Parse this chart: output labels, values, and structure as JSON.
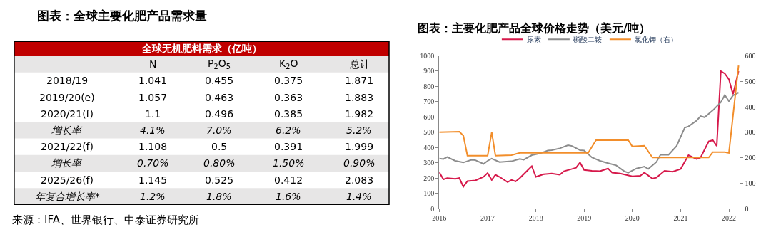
{
  "chart_data": [
    {
      "type": "other",
      "title": "图表：全球主要化肥产品需求量",
      "subtitle": "全球无机肥料需求（亿吨）",
      "categories": [
        "N",
        "P$_{2}$O$_{5}$",
        "K$_{2}$O",
        "总计"
      ],
      "y_categories": [
        "2018/19",
        "2019/20(e)",
        "2020/21(f)",
        "增长率",
        "2021/22(f)",
        "增长率",
        "2025/26(f)",
        "年复合增长率*"
      ],
      "cell_labels": [
        [
          "1.041",
          "0.455",
          "0.375",
          "1.871"
        ],
        [
          "1.057",
          "0.463",
          "0.363",
          "1.883"
        ],
        [
          "1.1",
          "0.496",
          "0.385",
          "1.982"
        ],
        [
          "4.1%",
          "7.0%",
          "6.2%",
          "5.2%"
        ],
        [
          "1.108",
          "0.5",
          "0.391",
          "1.999"
        ],
        [
          "0.70%",
          "0.80%",
          "1.50%",
          "0.90%"
        ],
        [
          "1.145",
          "0.525",
          "0.412",
          "2.083"
        ],
        [
          "1.2%",
          "1.8%",
          "1.6%",
          "1.4%"
        ]
      ],
      "color": "#c00000",
      "annotations": [
        "来源：IFA、世界银行、中泰证券研究所"
      ]
    },
    {
      "type": "line",
      "title": "图表：主要化肥产品全球价格走势（美元/吨）",
      "xlim": [
        "2016-01-01",
        "2022-03-25"
      ],
      "xticks": [
        "2016",
        "2017",
        "2018",
        "2019",
        "2020",
        "2021",
        "2022"
      ],
      "ylim": [
        0,
        1000
      ],
      "yticks": [
        0,
        100,
        200,
        300,
        400,
        500,
        600,
        700,
        800,
        900,
        1000
      ],
      "y2lim": [
        0,
        600
      ],
      "y2ticks": [
        0,
        100,
        200,
        300,
        400,
        500,
        600
      ],
      "legend": "top",
      "marker": "none",
      "line_style": "solid",
      "series": [
        {
          "name": "尿素",
          "color": "#d6184a",
          "x": [
            "2016-01",
            "2016-02",
            "2016-03",
            "2016-05",
            "2016-06",
            "2016-07",
            "2016-08",
            "2016-10",
            "2016-12",
            "2017-01",
            "2017-02",
            "2017-03",
            "2017-04",
            "2017-06",
            "2017-07",
            "2017-08",
            "2017-09",
            "2017-11",
            "2017-12",
            "2018-01",
            "2018-03",
            "2018-05",
            "2018-07",
            "2018-08",
            "2018-10",
            "2018-11",
            "2018-12",
            "2019-01",
            "2019-03",
            "2019-05",
            "2019-07",
            "2019-08",
            "2019-10",
            "2020-01",
            "2020-03",
            "2020-04",
            "2020-06",
            "2020-07",
            "2020-09",
            "2020-11",
            "2021-01",
            "2021-03",
            "2021-05",
            "2021-06",
            "2021-08",
            "2021-09",
            "2021-10",
            "2021-11",
            "2021-12",
            "2022-01",
            "2022-02",
            "2022-03-15"
          ],
          "values": [
            238,
            192,
            200,
            195,
            200,
            143,
            180,
            185,
            208,
            233,
            188,
            222,
            208,
            174,
            188,
            178,
            200,
            252,
            278,
            208,
            225,
            230,
            222,
            245,
            260,
            268,
            302,
            253,
            248,
            245,
            263,
            236,
            230,
            212,
            215,
            236,
            197,
            203,
            248,
            242,
            260,
            350,
            325,
            335,
            440,
            448,
            410,
            900,
            884,
            847,
            749,
            900
          ]
        },
        {
          "name": "磷酸二铵",
          "color": "#8c8c8c",
          "x": [
            "2016-01",
            "2016-02",
            "2016-03",
            "2016-05",
            "2016-07",
            "2016-09",
            "2016-10",
            "2016-12",
            "2017-01",
            "2017-02",
            "2017-04",
            "2017-07",
            "2017-09",
            "2017-10",
            "2017-12",
            "2018-02",
            "2018-04",
            "2018-05",
            "2018-07",
            "2018-09",
            "2018-10",
            "2018-12",
            "2019-01",
            "2019-03",
            "2019-05",
            "2019-07",
            "2019-09",
            "2019-11",
            "2019-12",
            "2020-02",
            "2020-04",
            "2020-05",
            "2020-07",
            "2020-08",
            "2020-10",
            "2020-12",
            "2021-02",
            "2021-03",
            "2021-05",
            "2021-06",
            "2021-07",
            "2021-09",
            "2021-11",
            "2021-12",
            "2022-01",
            "2022-02",
            "2022-03-15"
          ],
          "values": [
            328,
            325,
            338,
            313,
            302,
            320,
            317,
            293,
            313,
            328,
            305,
            310,
            325,
            320,
            350,
            362,
            380,
            383,
            395,
            415,
            410,
            383,
            380,
            335,
            313,
            298,
            283,
            245,
            235,
            263,
            275,
            260,
            305,
            353,
            353,
            410,
            530,
            538,
            576,
            606,
            598,
            643,
            696,
            744,
            703,
            741,
            760
          ]
        },
        {
          "name": "氯化钾（右）",
          "color": "#f28e2b",
          "axis": "y2",
          "x": [
            "2016-01",
            "2016-06",
            "2016-07",
            "2016-08",
            "2017-01",
            "2017-02",
            "2017-03",
            "2017-07",
            "2017-09",
            "2019-02",
            "2019-04",
            "2019-12",
            "2020-01",
            "2020-04",
            "2020-06",
            "2021-08",
            "2021-09",
            "2021-12",
            "2022-01",
            "2022-03-15"
          ],
          "values": [
            300,
            302,
            287,
            208,
            208,
            300,
            208,
            210,
            219,
            219,
            269,
            269,
            244,
            247,
            201,
            201,
            222,
            222,
            219,
            562
          ]
        }
      ]
    }
  ]
}
